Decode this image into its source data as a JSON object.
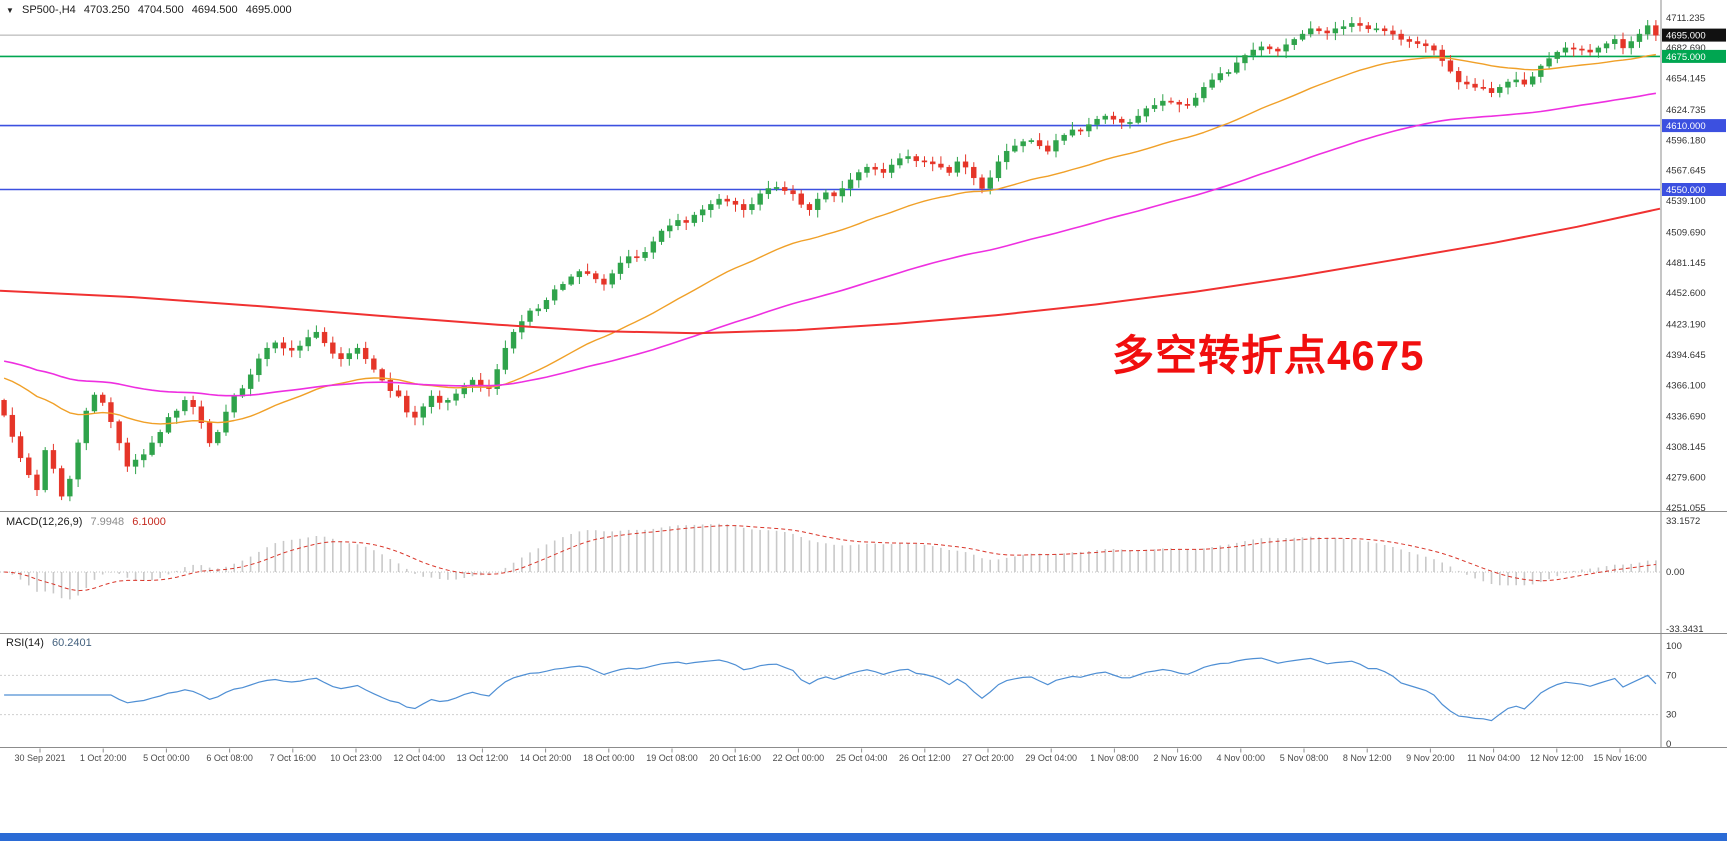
{
  "header": {
    "collapse_icon": "▼",
    "symbol": "SP500-,H4",
    "open": "4703.250",
    "high": "4704.500",
    "low": "4694.500",
    "close": "4695.000"
  },
  "annotation": {
    "text": "多空转折点4675",
    "color": "#f10e0e"
  },
  "window": {
    "bottom_strip_color": "#2b6bd5"
  },
  "price_axis": {
    "badges": [
      {
        "value": "4695.000",
        "color": "#111111"
      },
      {
        "value": "4675.000",
        "color": "#00a651"
      },
      {
        "value": "4610.000",
        "color": "#3c50e0"
      },
      {
        "value": "4550.000",
        "color": "#3c50e0"
      }
    ]
  },
  "hlines": [
    {
      "price": 4695,
      "color": "#aaaaaa",
      "width": 1
    },
    {
      "price": 4675,
      "color": "#00a651",
      "width": 1.6
    },
    {
      "price": 4610,
      "color": "#3c50e0",
      "width": 1.6
    },
    {
      "price": 4550,
      "color": "#3c50e0",
      "width": 1.6
    }
  ],
  "indicators": {
    "macd": {
      "label": "MACD(12,26,9)",
      "value_main": "7.9948",
      "value_signal": "6.1000",
      "scale": [
        "33.1572",
        "0.00",
        "-33.3431"
      ],
      "fast": 12,
      "slow": 26,
      "signal": 9,
      "hist_color": "#c9c9c9",
      "signal_color": "#d9362a"
    },
    "rsi": {
      "label": "RSI(14)",
      "value": "60.2401",
      "period": 14,
      "scale": [
        "100",
        "70",
        "30",
        "0"
      ],
      "levels": [
        70,
        30
      ],
      "color": "#4f8fd4"
    }
  },
  "chart_data": {
    "type": "candlestick",
    "symbol": "SP500-",
    "timeframe": "H4",
    "title": "SP500-,H4",
    "ohlc_current": {
      "open": 4703.25,
      "high": 4704.5,
      "low": 4694.5,
      "close": 4695.0
    },
    "y_axis": {
      "min": 4249,
      "max": 4728,
      "tick_labels": [
        "4711.235",
        "4682.690",
        "4654.145",
        "4624.735",
        "4596.180",
        "4567.645",
        "4539.100",
        "4509.690",
        "4481.145",
        "4452.600",
        "4423.190",
        "4394.645",
        "4366.100",
        "4336.690",
        "4308.145",
        "4279.600",
        "4251.055"
      ]
    },
    "first_open": 4352,
    "closes": [
      4338,
      4318,
      4298,
      4282,
      4268,
      4305,
      4288,
      4262,
      4278,
      4312,
      4342,
      4357,
      4350,
      4332,
      4312,
      4290,
      4296,
      4301,
      4312,
      4322,
      4336,
      4342,
      4352,
      4346,
      4331,
      4312,
      4322,
      4341,
      4356,
      4363,
      4376,
      4391,
      4401,
      4406,
      4401,
      4399,
      4403,
      4411,
      4416,
      4406,
      4396,
      4391,
      4396,
      4401,
      4391,
      4381,
      4371,
      4361,
      4356,
      4341,
      4336,
      4346,
      4356,
      4350,
      4352,
      4358,
      4366,
      4371,
      4366,
      4363,
      4381,
      4401,
      4416,
      4426,
      4436,
      4438,
      4446,
      4456,
      4461,
      4468,
      4473,
      4471,
      4466,
      4461,
      4471,
      4481,
      4487,
      4486,
      4491,
      4501,
      4511,
      4516,
      4521,
      4519,
      4526,
      4531,
      4536,
      4541,
      4539,
      4536,
      4531,
      4536,
      4546,
      4551,
      4552,
      4549,
      4546,
      4536,
      4531,
      4541,
      4547,
      4544,
      4551,
      4559,
      4566,
      4571,
      4569,
      4566,
      4573,
      4579,
      4581,
      4577,
      4576,
      4574,
      4571,
      4566,
      4576,
      4571,
      4561,
      4551,
      4561,
      4576,
      4586,
      4591,
      4595,
      4596,
      4591,
      4586,
      4596,
      4601,
      4606,
      4605,
      4611,
      4616,
      4619,
      4616,
      4613,
      4613,
      4619,
      4626,
      4629,
      4633,
      4632,
      4630,
      4629,
      4636,
      4646,
      4653,
      4659,
      4660,
      4669,
      4676,
      4681,
      4684,
      4682,
      4680,
      4686,
      4691,
      4696,
      4701,
      4699,
      4697,
      4701,
      4703,
      4706,
      4704,
      4701,
      4701,
      4699,
      4696,
      4691,
      4689,
      4687,
      4685,
      4681,
      4671,
      4661,
      4651,
      4649,
      4646,
      4645,
      4641,
      4646,
      4651,
      4653,
      4649,
      4656,
      4666,
      4673,
      4679,
      4683,
      4682,
      4681,
      4679,
      4683,
      4687,
      4691,
      4683,
      4689,
      4696,
      4704,
      4695
    ],
    "time_labels": [
      "30 Sep 2021",
      "1 Oct 20:00",
      "5 Oct 00:00",
      "6 Oct 08:00",
      "7 Oct 16:00",
      "10 Oct 23:00",
      "12 Oct 04:00",
      "13 Oct 12:00",
      "14 Oct 20:00",
      "18 Oct 00:00",
      "19 Oct 08:00",
      "20 Oct 16:00",
      "22 Oct 00:00",
      "25 Oct 04:00",
      "26 Oct 12:00",
      "27 Oct 20:00",
      "29 Oct 04:00",
      "1 Nov 08:00",
      "2 Nov 16:00",
      "4 Nov 00:00",
      "5 Nov 08:00",
      "8 Nov 12:00",
      "9 Nov 20:00",
      "11 Nov 04:00",
      "12 Nov 12:00",
      "15 Nov 16:00"
    ],
    "moving_averages": [
      {
        "name": "ema-fast",
        "period": 34,
        "seed": 4375,
        "color": "#f0a028",
        "width": 1.4
      },
      {
        "name": "ema-mid",
        "period": 89,
        "seed": 4390,
        "color": "#ee2fe0",
        "width": 1.6
      },
      {
        "name": "ma-slow",
        "color": "#f03131",
        "width": 2,
        "anchors": [
          [
            0,
            4455
          ],
          [
            0.08,
            4449
          ],
          [
            0.16,
            4440
          ],
          [
            0.24,
            4430
          ],
          [
            0.3,
            4423
          ],
          [
            0.36,
            4417
          ],
          [
            0.42,
            4415
          ],
          [
            0.48,
            4418
          ],
          [
            0.54,
            4424
          ],
          [
            0.6,
            4432
          ],
          [
            0.66,
            4442
          ],
          [
            0.72,
            4454
          ],
          [
            0.78,
            4468
          ],
          [
            0.84,
            4484
          ],
          [
            0.9,
            4500
          ],
          [
            0.95,
            4515
          ],
          [
            1,
            4532
          ]
        ]
      }
    ],
    "bull_color": "#2fa34b",
    "bear_color": "#e53528",
    "seed": 7
  }
}
